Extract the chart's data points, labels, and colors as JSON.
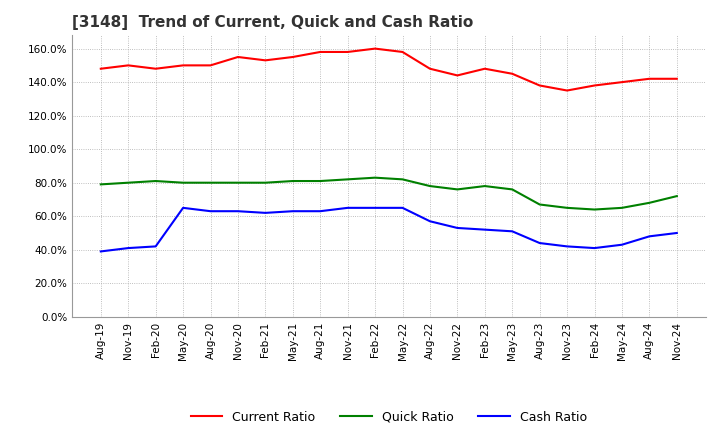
{
  "title": "[3148]  Trend of Current, Quick and Cash Ratio",
  "x_labels": [
    "Aug-19",
    "Nov-19",
    "Feb-20",
    "May-20",
    "Aug-20",
    "Nov-20",
    "Feb-21",
    "May-21",
    "Aug-21",
    "Nov-21",
    "Feb-22",
    "May-22",
    "Aug-22",
    "Nov-22",
    "Feb-23",
    "May-23",
    "Aug-23",
    "Nov-23",
    "Feb-24",
    "May-24",
    "Aug-24",
    "Nov-24"
  ],
  "current_ratio": [
    148,
    150,
    148,
    150,
    150,
    155,
    153,
    155,
    158,
    158,
    160,
    158,
    148,
    144,
    148,
    145,
    138,
    135,
    138,
    140,
    142,
    142
  ],
  "quick_ratio": [
    79,
    80,
    81,
    80,
    80,
    80,
    80,
    81,
    81,
    82,
    83,
    82,
    78,
    76,
    78,
    76,
    67,
    65,
    64,
    65,
    68,
    72
  ],
  "cash_ratio": [
    39,
    41,
    42,
    65,
    63,
    63,
    62,
    63,
    63,
    65,
    65,
    65,
    57,
    53,
    52,
    51,
    44,
    42,
    41,
    43,
    48,
    50
  ],
  "ylim": [
    0,
    168
  ],
  "yticks": [
    0,
    20,
    40,
    60,
    80,
    100,
    120,
    140,
    160
  ],
  "current_color": "#ff0000",
  "quick_color": "#008000",
  "cash_color": "#0000ff",
  "background_color": "#ffffff",
  "grid_color": "#aaaaaa",
  "legend_labels": [
    "Current Ratio",
    "Quick Ratio",
    "Cash Ratio"
  ],
  "title_fontsize": 11,
  "tick_fontsize": 7.5
}
